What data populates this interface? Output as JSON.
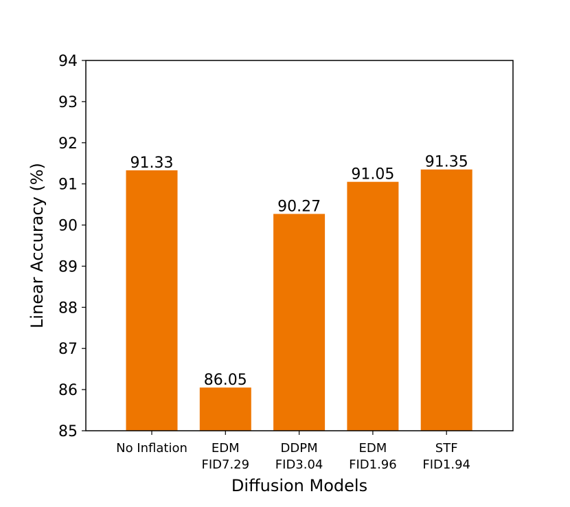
{
  "chart_data": {
    "type": "bar",
    "categories": [
      "No Inflation|",
      "EDM|FID7.29",
      "DDPM|FID3.04",
      "EDM|FID1.96",
      "STF|FID1.94"
    ],
    "category_lines": [
      [
        "No Inflation"
      ],
      [
        "EDM",
        "FID7.29"
      ],
      [
        "DDPM",
        "FID3.04"
      ],
      [
        "EDM",
        "FID1.96"
      ],
      [
        "STF",
        "FID1.94"
      ]
    ],
    "values": [
      91.33,
      86.05,
      90.27,
      91.05,
      91.35
    ],
    "data_labels": [
      "91.33",
      "86.05",
      "90.27",
      "91.05",
      "91.35"
    ],
    "xlabel": "Diffusion Models",
    "ylabel": "Linear Accuracy (%)",
    "ylim": [
      85,
      94
    ],
    "yticks": [
      "85",
      "86",
      "87",
      "88",
      "89",
      "90",
      "91",
      "92",
      "93",
      "94"
    ],
    "bar_color": "#ee7600",
    "grid": false,
    "legend": "none"
  }
}
